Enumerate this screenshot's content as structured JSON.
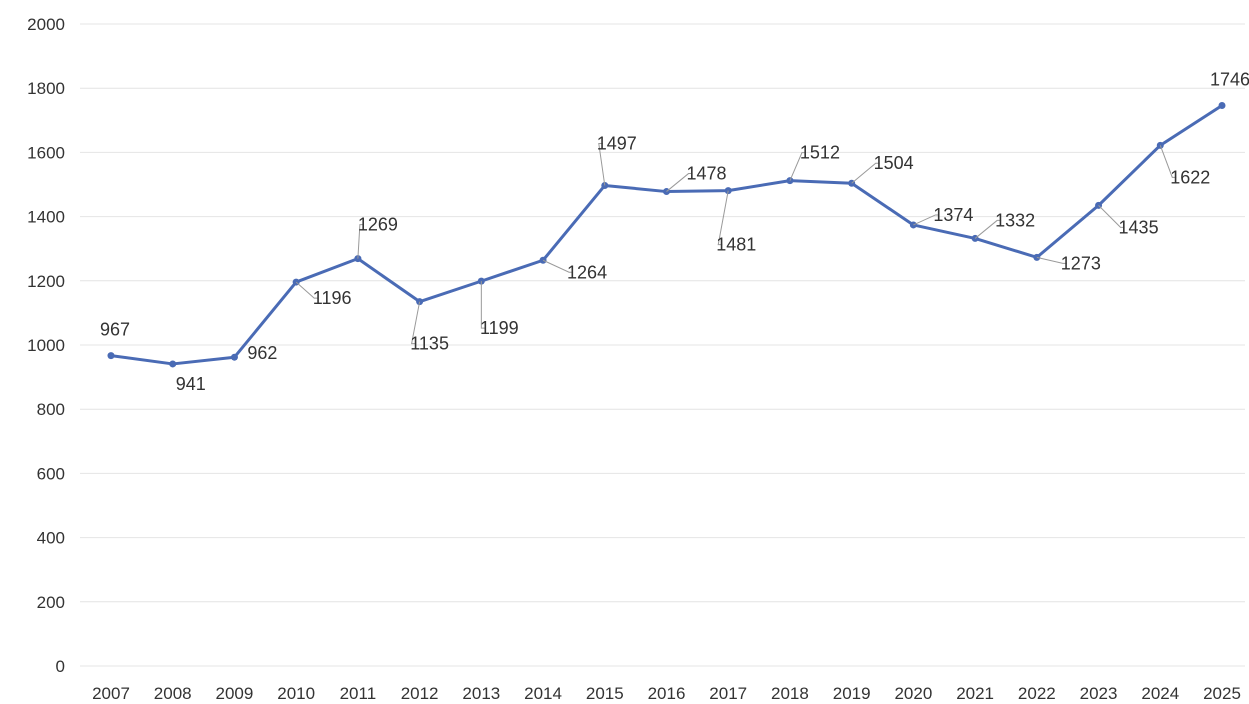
{
  "chart_data": {
    "type": "line",
    "categories": [
      "2007",
      "2008",
      "2009",
      "2010",
      "2011",
      "2012",
      "2013",
      "2014",
      "2015",
      "2016",
      "2017",
      "2018",
      "2019",
      "2020",
      "2021",
      "2022",
      "2023",
      "2024",
      "2025"
    ],
    "series": [
      {
        "values": [
          967,
          941,
          962,
          1196,
          1269,
          1135,
          1199,
          1264,
          1497,
          1478,
          1481,
          1512,
          1504,
          1374,
          1332,
          1273,
          1435,
          1622,
          1746
        ]
      }
    ],
    "title": "",
    "xlabel": "",
    "ylabel": "",
    "ylim": [
      0,
      2000
    ],
    "yticks": [
      0,
      200,
      400,
      600,
      800,
      1000,
      1200,
      1400,
      1600,
      1800,
      2000
    ],
    "data_labels": true,
    "grid": "horizontal",
    "legend": "none",
    "colors": {
      "line": "#4a6bb5",
      "grid": "#e4e4e4",
      "text": "#333333"
    }
  }
}
